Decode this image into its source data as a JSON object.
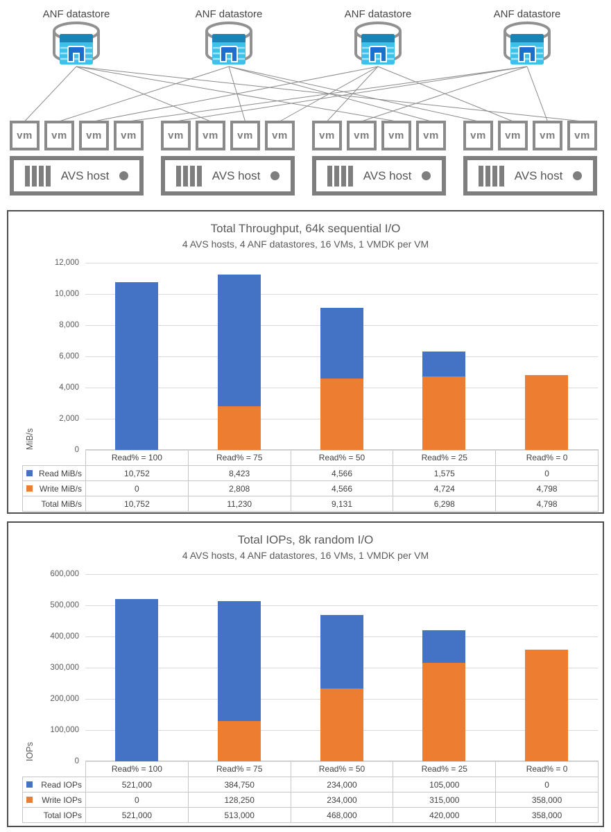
{
  "diagram": {
    "datastores": [
      {
        "label": "ANF datastore"
      },
      {
        "label": "ANF datastore"
      },
      {
        "label": "ANF datastore"
      },
      {
        "label": "ANF datastore"
      }
    ],
    "hosts": [
      {
        "label": "AVS host",
        "vms": [
          "vm",
          "vm",
          "vm",
          "vm"
        ]
      },
      {
        "label": "AVS host",
        "vms": [
          "vm",
          "vm",
          "vm",
          "vm"
        ]
      },
      {
        "label": "AVS host",
        "vms": [
          "vm",
          "vm",
          "vm",
          "vm"
        ]
      },
      {
        "label": "AVS host",
        "vms": [
          "vm",
          "vm",
          "vm",
          "vm"
        ]
      }
    ]
  },
  "chart_data": [
    {
      "type": "bar",
      "stacked": true,
      "title": "Total Throughput, 64k sequential I/O",
      "subtitle": "4 AVS hosts, 4 ANF datastores, 16 VMs, 1 VMDK per VM",
      "ylabel": "MiB/s",
      "ylim": [
        0,
        12000
      ],
      "ytick_step": 2000,
      "grid": true,
      "legend_position": "data-table-left",
      "categories": [
        "Read% = 100",
        "Read% = 75",
        "Read% = 50",
        "Read% = 25",
        "Read% = 0"
      ],
      "series": [
        {
          "name": "Read MiB/s",
          "color": "#4472C4",
          "values": [
            10752,
            8423,
            4566,
            1575,
            0
          ]
        },
        {
          "name": "Write MiB/s",
          "color": "#ED7D31",
          "values": [
            0,
            2808,
            4566,
            4724,
            4798
          ]
        }
      ],
      "total_row": {
        "name": "Total MiB/s",
        "values": [
          10752,
          11230,
          9131,
          6298,
          4798
        ]
      }
    },
    {
      "type": "bar",
      "stacked": true,
      "title": "Total IOPs, 8k random I/O",
      "subtitle": "4 AVS hosts, 4 ANF datastores, 16 VMs, 1 VMDK per VM",
      "ylabel": "IOPs",
      "ylim": [
        0,
        600000
      ],
      "ytick_step": 100000,
      "grid": true,
      "legend_position": "data-table-left",
      "categories": [
        "Read% = 100",
        "Read% = 75",
        "Read% = 50",
        "Read% = 25",
        "Read% = 0"
      ],
      "series": [
        {
          "name": "Read IOPs",
          "color": "#4472C4",
          "values": [
            521000,
            384750,
            234000,
            105000,
            0
          ]
        },
        {
          "name": "Write IOPs",
          "color": "#ED7D31",
          "values": [
            0,
            128250,
            234000,
            315000,
            358000
          ]
        }
      ],
      "total_row": {
        "name": "Total IOPs",
        "values": [
          521000,
          513000,
          468000,
          420000,
          358000
        ]
      }
    }
  ],
  "colors": {
    "read_blue": "#4472C4",
    "write_orange": "#ED7D31",
    "gridline": "#D9D9D9",
    "diagram_gray": "#8A8A8A"
  }
}
